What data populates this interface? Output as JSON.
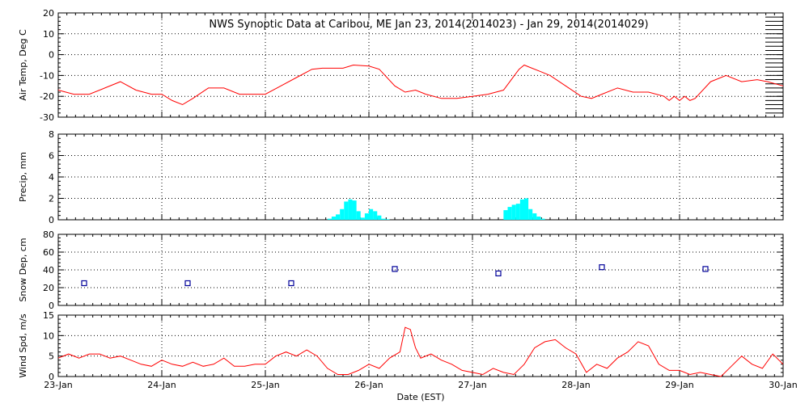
{
  "title": "NWS Synoptic Data at Caribou, ME   Jan 23, 2014(2014023) - Jan 29, 2014(2014029)",
  "xlabel": "Date (EST)",
  "x_tick_labels": [
    "23-Jan",
    "24-Jan",
    "25-Jan",
    "26-Jan",
    "27-Jan",
    "28-Jan",
    "29-Jan",
    "30-Jan"
  ],
  "colors": {
    "line": "#ff0000",
    "bar": "#00ffff",
    "marker": "#000099",
    "grid": "#000000"
  },
  "chart_data": [
    {
      "type": "line",
      "ylabel": "Air Temp, Deg C",
      "ylim": [
        -30,
        20
      ],
      "yticks": [
        20,
        10,
        0,
        -10,
        -20,
        -30
      ],
      "x_unit": "days since 23-Jan 00:00",
      "x": [
        0,
        0.15,
        0.3,
        0.45,
        0.6,
        0.75,
        0.9,
        1.0,
        1.1,
        1.2,
        1.3,
        1.45,
        1.6,
        1.75,
        1.9,
        2.0,
        2.15,
        2.3,
        2.45,
        2.55,
        2.65,
        2.75,
        2.85,
        3.0,
        3.1,
        3.25,
        3.35,
        3.45,
        3.55,
        3.7,
        3.85,
        4.0,
        4.15,
        4.3,
        4.45,
        4.5,
        4.55,
        4.65,
        4.75,
        4.9,
        5.05,
        5.15,
        5.25,
        5.4,
        5.55,
        5.7,
        5.85,
        5.9,
        5.95,
        6.0,
        6.05,
        6.1,
        6.15,
        6.3,
        6.45,
        6.6,
        6.75,
        6.85,
        7.0
      ],
      "y": [
        -17,
        -19,
        -19,
        -16,
        -13,
        -17,
        -19,
        -19,
        -22,
        -24,
        -21,
        -16,
        -16,
        -19,
        -19,
        -19,
        -15,
        -11,
        -7,
        -6.5,
        -6.5,
        -6.5,
        -5,
        -5.5,
        -7,
        -15,
        -18,
        -17,
        -19,
        -21,
        -21,
        -20,
        -19,
        -17,
        -7,
        -5,
        -6,
        -8,
        -10,
        -15,
        -20,
        -21,
        -19,
        -16,
        -18,
        -18,
        -20,
        -22,
        -20,
        -22,
        -20,
        -22,
        -21,
        -13,
        -10,
        -13,
        -12,
        -13,
        -15
      ]
    },
    {
      "type": "bar",
      "ylabel": "Precip, mm",
      "ylim": [
        0,
        8
      ],
      "yticks": [
        8,
        6,
        4,
        2,
        0
      ],
      "x_unit": "days since 23-Jan 00:00",
      "bar_width": 0.04,
      "x": [
        2.6,
        2.64,
        2.68,
        2.72,
        2.76,
        2.8,
        2.84,
        2.88,
        2.92,
        2.96,
        3.0,
        3.04,
        3.08,
        3.12,
        3.16,
        4.3,
        4.34,
        4.38,
        4.42,
        4.46,
        4.5,
        4.54,
        4.58,
        4.62,
        4.66
      ],
      "values": [
        0.1,
        0.3,
        0.5,
        1.0,
        1.7,
        1.9,
        1.8,
        0.8,
        0.2,
        0.6,
        1.0,
        0.8,
        0.4,
        0.1,
        0.05,
        0.9,
        1.2,
        1.4,
        1.5,
        1.9,
        2.0,
        1.0,
        0.6,
        0.3,
        0.1
      ]
    },
    {
      "type": "scatter",
      "ylabel": "Snow Dep, cm",
      "ylim": [
        0,
        80
      ],
      "yticks": [
        80,
        60,
        40,
        20,
        0
      ],
      "x_unit": "days since 23-Jan 00:00",
      "x": [
        0.25,
        1.25,
        2.25,
        3.25,
        4.25,
        5.25,
        6.25
      ],
      "y": [
        25,
        25,
        25,
        41,
        36,
        43,
        41
      ]
    },
    {
      "type": "line",
      "ylabel": "Wind Spd, m/s",
      "ylim": [
        0,
        15
      ],
      "yticks": [
        15,
        10,
        5,
        0
      ],
      "x_unit": "days since 23-Jan 00:00",
      "x": [
        0,
        0.1,
        0.2,
        0.3,
        0.4,
        0.5,
        0.6,
        0.7,
        0.8,
        0.9,
        1.0,
        1.1,
        1.2,
        1.3,
        1.4,
        1.5,
        1.6,
        1.7,
        1.8,
        1.9,
        2.0,
        2.1,
        2.2,
        2.3,
        2.4,
        2.5,
        2.6,
        2.7,
        2.8,
        2.9,
        3.0,
        3.1,
        3.2,
        3.3,
        3.35,
        3.4,
        3.45,
        3.5,
        3.6,
        3.7,
        3.8,
        3.9,
        4.0,
        4.1,
        4.2,
        4.3,
        4.4,
        4.5,
        4.6,
        4.7,
        4.8,
        4.9,
        5.0,
        5.1,
        5.2,
        5.3,
        5.4,
        5.5,
        5.6,
        5.7,
        5.8,
        5.9,
        6.0,
        6.1,
        6.2,
        6.3,
        6.4,
        6.5,
        6.6,
        6.7,
        6.8,
        6.9,
        7.0
      ],
      "y": [
        4.5,
        5.5,
        4.5,
        5.5,
        5.5,
        4.5,
        5.0,
        4.0,
        3.0,
        2.5,
        4.0,
        3.0,
        2.5,
        3.5,
        2.5,
        3.0,
        4.5,
        2.5,
        2.5,
        3.0,
        3.0,
        5.0,
        6.0,
        5.0,
        6.5,
        5.0,
        2.0,
        0.5,
        0.5,
        1.5,
        3.0,
        2.0,
        4.5,
        6.0,
        12.0,
        11.5,
        7.0,
        4.5,
        5.5,
        4.0,
        3.0,
        1.5,
        1.0,
        0.5,
        2.0,
        1.0,
        0.5,
        3.0,
        7.0,
        8.5,
        9.0,
        7.0,
        5.5,
        1.0,
        3.0,
        2.0,
        4.5,
        6.0,
        8.5,
        7.5,
        3.0,
        1.5,
        1.5,
        0.5,
        1.0,
        0.5,
        0.0,
        2.5,
        5.0,
        3.0,
        2.0,
        5.5,
        3.0
      ]
    }
  ]
}
